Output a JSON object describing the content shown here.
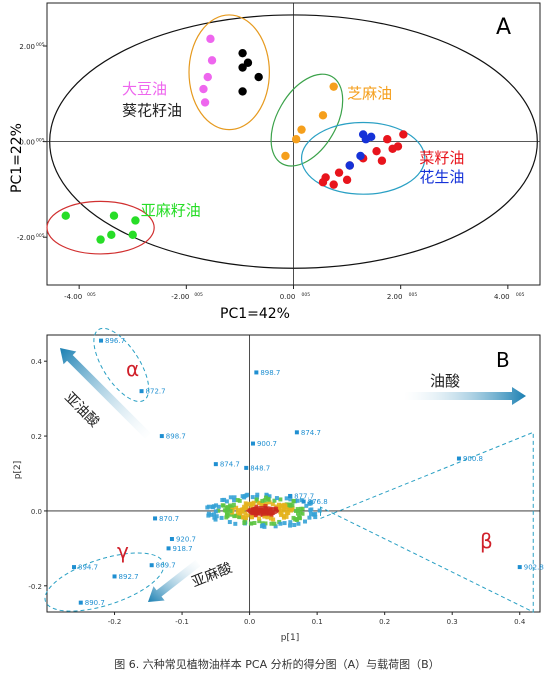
{
  "chart_data": [
    {
      "type": "scatter",
      "panel_label": "A",
      "xlabel": "PC1=42%",
      "ylabel": "PC1=22%",
      "xlim": [
        -4.6,
        4.6
      ],
      "ylim": [
        -3.0,
        2.9
      ],
      "x_ticks": [
        "-4.00",
        "-2.00",
        "0.00",
        "2.00",
        "4.00"
      ],
      "y_ticks": [
        "2.00",
        "0.00",
        "-2.00"
      ],
      "tick_exponent": "005",
      "grid": false,
      "series": [
        {
          "name": "大豆油",
          "color": "#ee66ee",
          "points": [
            [
              -1.55,
              2.15
            ],
            [
              -1.52,
              1.7
            ],
            [
              -1.6,
              1.35
            ],
            [
              -1.68,
              1.1
            ],
            [
              -1.65,
              0.82
            ]
          ]
        },
        {
          "name": "葵花籽油",
          "color": "#000000",
          "points": [
            [
              -0.95,
              1.85
            ],
            [
              -0.85,
              1.65
            ],
            [
              -0.95,
              1.55
            ],
            [
              -0.65,
              1.35
            ],
            [
              -0.95,
              1.05
            ]
          ]
        },
        {
          "name": "芝麻油",
          "color": "#f59f1c",
          "points": [
            [
              0.75,
              1.15
            ],
            [
              0.55,
              0.55
            ],
            [
              0.15,
              0.25
            ],
            [
              0.05,
              0.05
            ],
            [
              -0.15,
              -0.3
            ]
          ]
        },
        {
          "name": "菜籽油",
          "color": "#e8141c",
          "points": [
            [
              2.05,
              0.15
            ],
            [
              1.85,
              -0.15
            ],
            [
              1.55,
              -0.2
            ],
            [
              1.3,
              -0.35
            ],
            [
              1.05,
              -0.5
            ],
            [
              0.85,
              -0.65
            ],
            [
              0.6,
              -0.75
            ],
            [
              1.0,
              -0.8
            ],
            [
              1.65,
              -0.4
            ],
            [
              1.95,
              -0.1
            ],
            [
              1.75,
              0.05
            ],
            [
              0.75,
              -0.9
            ],
            [
              0.55,
              -0.85
            ]
          ]
        },
        {
          "name": "花生油",
          "color": "#1532d8",
          "points": [
            [
              1.3,
              0.15
            ],
            [
              1.45,
              0.1
            ],
            [
              1.25,
              -0.3
            ],
            [
              1.05,
              -0.5
            ],
            [
              1.35,
              0.05
            ]
          ]
        },
        {
          "name": "亚麻籽油",
          "color": "#27dd27",
          "points": [
            [
              -4.25,
              -1.55
            ],
            [
              -3.35,
              -1.55
            ],
            [
              -2.95,
              -1.65
            ],
            [
              -3.4,
              -1.95
            ],
            [
              -3.6,
              -2.05
            ],
            [
              -3.0,
              -1.95
            ]
          ]
        }
      ]
    },
    {
      "type": "scatter",
      "panel_label": "B",
      "xlabel": "p[1]",
      "ylabel": "p[2]",
      "xlim": [
        -0.3,
        0.43
      ],
      "ylim": [
        -0.27,
        0.47
      ],
      "x_ticks": [
        "-0.2",
        "-0.1",
        "0.0",
        "0.1",
        "0.2",
        "0.3",
        "0.4"
      ],
      "y_ticks": [
        "0.4",
        "0.2",
        "0.0",
        "-0.2"
      ],
      "labeled_points": [
        {
          "label": "896.7",
          "x": -0.22,
          "y": 0.455
        },
        {
          "label": "872.7",
          "x": -0.16,
          "y": 0.32
        },
        {
          "label": "898.7",
          "x": 0.01,
          "y": 0.37
        },
        {
          "label": "898.7",
          "x": -0.13,
          "y": 0.2
        },
        {
          "label": "874.7",
          "x": 0.07,
          "y": 0.21
        },
        {
          "label": "900.7",
          "x": 0.005,
          "y": 0.18
        },
        {
          "label": "874.7",
          "x": -0.05,
          "y": 0.125
        },
        {
          "label": "848.7",
          "x": -0.005,
          "y": 0.115
        },
        {
          "label": "900.8",
          "x": 0.31,
          "y": 0.14
        },
        {
          "label": "877.7",
          "x": 0.06,
          "y": 0.04
        },
        {
          "label": "876.8",
          "x": 0.08,
          "y": 0.025
        },
        {
          "label": "870.7",
          "x": -0.14,
          "y": -0.02
        },
        {
          "label": "902.8",
          "x": 0.4,
          "y": -0.15
        },
        {
          "label": "869.7",
          "x": -0.145,
          "y": -0.145
        },
        {
          "label": "894.7",
          "x": -0.26,
          "y": -0.15
        },
        {
          "label": "892.7",
          "x": -0.2,
          "y": -0.175
        },
        {
          "label": "890.7",
          "x": -0.25,
          "y": -0.245
        },
        {
          "label": "918.7",
          "x": -0.12,
          "y": -0.1
        },
        {
          "label": "920.7",
          "x": -0.115,
          "y": -0.075
        }
      ],
      "annotations": [
        {
          "text": "α",
          "color": "#d0202a"
        },
        {
          "text": "β",
          "color": "#d0202a"
        },
        {
          "text": "γ",
          "color": "#d0202a"
        },
        {
          "text": "亚油酸",
          "color": "#222222"
        },
        {
          "text": "油酸",
          "color": "#222222"
        },
        {
          "text": "亚麻酸",
          "color": "#222222"
        }
      ]
    }
  ],
  "caption": "图 6. 六种常见植物油样本 PCA 分析的得分图（A）与载荷图（B）"
}
